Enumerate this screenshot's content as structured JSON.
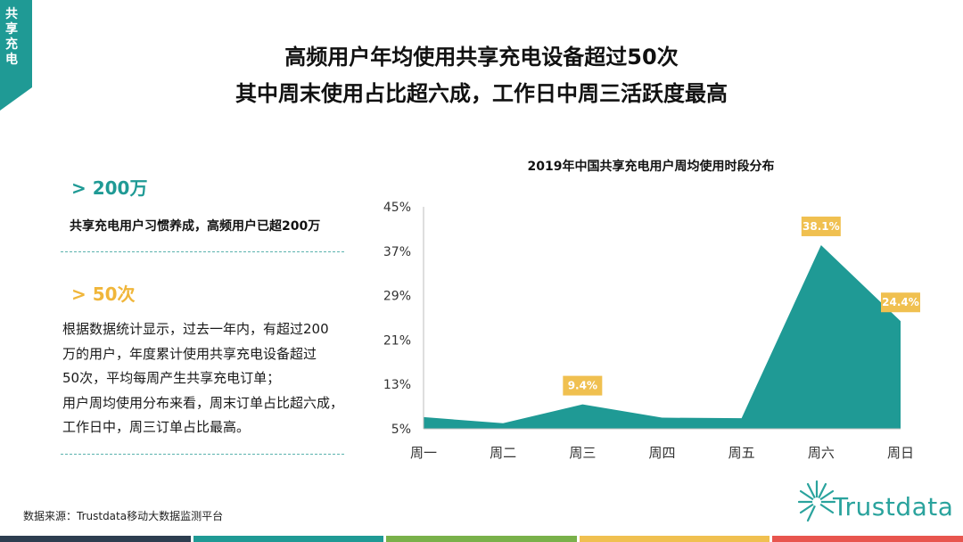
{
  "section_tag": "共享充电",
  "headline": {
    "line1": "高频用户年均使用共享充电设备超过50次",
    "line2": "其中周末使用占比超六成，工作日中周三活跃度最高"
  },
  "stat_a": {
    "value": "> 200万",
    "description": "共享充电用户习惯养成，高频用户已超200万"
  },
  "stat_b": {
    "value": "> 50次",
    "description_lines": [
      "根据数据统计显示，过去一年内，有超过200",
      "万的用户，年度累计使用共享充电设备超过",
      "50次，平均每周产生共享充电订单；",
      "用户周均使用分布来看，周末订单占比超六成，",
      "工作日中，周三订单占比最高。"
    ]
  },
  "chart_data": {
    "type": "area",
    "title": "2019年中国共享充电用户周均使用时段分布",
    "categories": [
      "周一",
      "周二",
      "周三",
      "周四",
      "周五",
      "周六",
      "周日"
    ],
    "values": [
      7.1,
      6.0,
      9.4,
      7.0,
      6.9,
      38.1,
      24.4
    ],
    "labels": {
      "2": "9.4%",
      "5": "38.1%",
      "6": "24.4%"
    },
    "y_ticks": [
      "5%",
      "13%",
      "21%",
      "29%",
      "37%",
      "45%"
    ],
    "y_tick_values": [
      5,
      13,
      21,
      29,
      37,
      45
    ],
    "ylim": [
      5,
      45
    ],
    "color": "#1f9a95",
    "label_color": "#f0c050",
    "grid": false
  },
  "source": "数据来源：Trustdata移动大数据监测平台",
  "logo_text": "Trustdata",
  "colors": {
    "teal": "#1f9a95",
    "gold": "#f0b63a",
    "bottom_bar": [
      "#2d3e50",
      "#1f9a95",
      "#79b14a",
      "#f0c050",
      "#e8554e"
    ]
  }
}
